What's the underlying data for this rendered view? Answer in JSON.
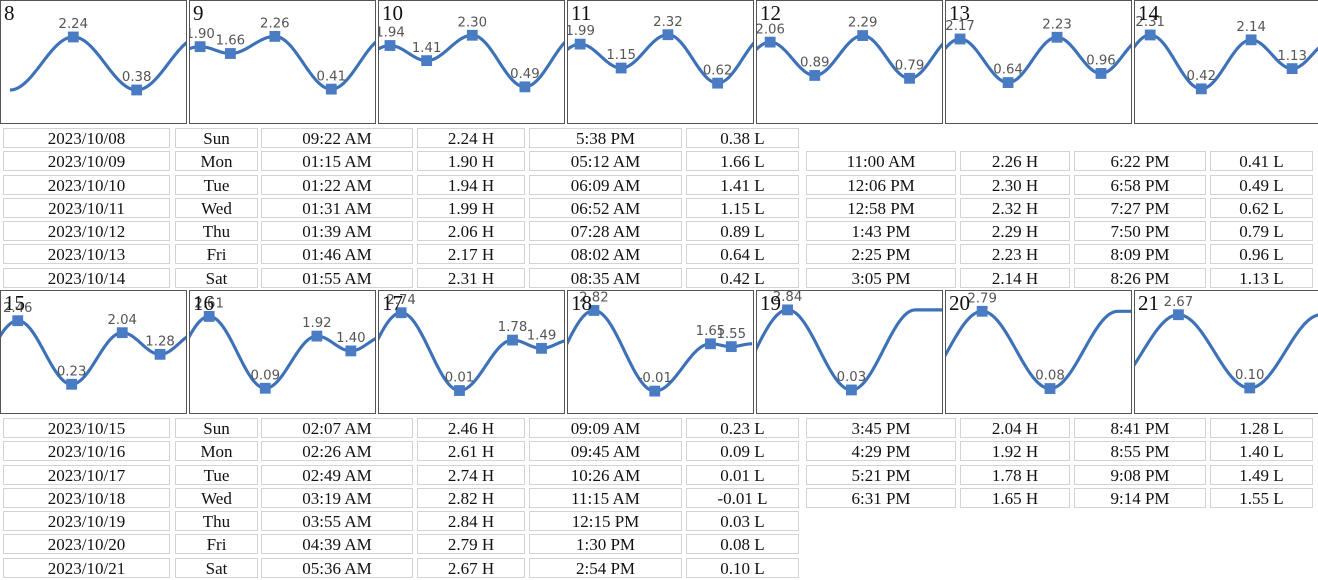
{
  "colors": {
    "curve": "#3d72b8",
    "marker": "#4a7cc4",
    "label": "#555555",
    "border": "#555555",
    "cell_border": "#d3d3d3"
  },
  "weeks": [
    {
      "days": [
        {
          "day": "8",
          "date": "2023/10/08",
          "weekday": "Sun",
          "tides": [
            {
              "time": "09:22 AM",
              "height": "2.24",
              "type": "H"
            },
            {
              "time": "5:38 PM",
              "height": "0.38",
              "type": "L"
            }
          ]
        },
        {
          "day": "9",
          "date": "2023/10/09",
          "weekday": "Mon",
          "tides": [
            {
              "time": "01:15 AM",
              "height": "1.90",
              "type": "H"
            },
            {
              "time": "05:12 AM",
              "height": "1.66",
              "type": "L"
            },
            {
              "time": "11:00 AM",
              "height": "2.26",
              "type": "H"
            },
            {
              "time": "6:22 PM",
              "height": "0.41",
              "type": "L"
            }
          ]
        },
        {
          "day": "10",
          "date": "2023/10/10",
          "weekday": "Tue",
          "tides": [
            {
              "time": "01:22 AM",
              "height": "1.94",
              "type": "H"
            },
            {
              "time": "06:09 AM",
              "height": "1.41",
              "type": "L"
            },
            {
              "time": "12:06 PM",
              "height": "2.30",
              "type": "H"
            },
            {
              "time": "6:58 PM",
              "height": "0.49",
              "type": "L"
            }
          ]
        },
        {
          "day": "11",
          "date": "2023/10/11",
          "weekday": "Wed",
          "tides": [
            {
              "time": "01:31 AM",
              "height": "1.99",
              "type": "H"
            },
            {
              "time": "06:52 AM",
              "height": "1.15",
              "type": "L"
            },
            {
              "time": "12:58 PM",
              "height": "2.32",
              "type": "H"
            },
            {
              "time": "7:27 PM",
              "height": "0.62",
              "type": "L"
            }
          ]
        },
        {
          "day": "12",
          "date": "2023/10/12",
          "weekday": "Thu",
          "tides": [
            {
              "time": "01:39 AM",
              "height": "2.06",
              "type": "H"
            },
            {
              "time": "07:28 AM",
              "height": "0.89",
              "type": "L"
            },
            {
              "time": "1:43 PM",
              "height": "2.29",
              "type": "H"
            },
            {
              "time": "7:50 PM",
              "height": "0.79",
              "type": "L"
            }
          ]
        },
        {
          "day": "13",
          "date": "2023/10/13",
          "weekday": "Fri",
          "tides": [
            {
              "time": "01:46 AM",
              "height": "2.17",
              "type": "H"
            },
            {
              "time": "08:02 AM",
              "height": "0.64",
              "type": "L"
            },
            {
              "time": "2:25 PM",
              "height": "2.23",
              "type": "H"
            },
            {
              "time": "8:09 PM",
              "height": "0.96",
              "type": "L"
            }
          ]
        },
        {
          "day": "14",
          "date": "2023/10/14",
          "weekday": "Sat",
          "tides": [
            {
              "time": "01:55 AM",
              "height": "2.31",
              "type": "H"
            },
            {
              "time": "08:35 AM",
              "height": "0.42",
              "type": "L"
            },
            {
              "time": "3:05 PM",
              "height": "2.14",
              "type": "H"
            },
            {
              "time": "8:26 PM",
              "height": "1.13",
              "type": "L"
            }
          ]
        }
      ]
    },
    {
      "days": [
        {
          "day": "15",
          "date": "2023/10/15",
          "weekday": "Sun",
          "tides": [
            {
              "time": "02:07 AM",
              "height": "2.46",
              "type": "H"
            },
            {
              "time": "09:09 AM",
              "height": "0.23",
              "type": "L"
            },
            {
              "time": "3:45 PM",
              "height": "2.04",
              "type": "H"
            },
            {
              "time": "8:41 PM",
              "height": "1.28",
              "type": "L"
            }
          ]
        },
        {
          "day": "16",
          "date": "2023/10/16",
          "weekday": "Mon",
          "tides": [
            {
              "time": "02:26 AM",
              "height": "2.61",
              "type": "H"
            },
            {
              "time": "09:45 AM",
              "height": "0.09",
              "type": "L"
            },
            {
              "time": "4:29 PM",
              "height": "1.92",
              "type": "H"
            },
            {
              "time": "8:55 PM",
              "height": "1.40",
              "type": "L"
            }
          ]
        },
        {
          "day": "17",
          "date": "2023/10/17",
          "weekday": "Tue",
          "tides": [
            {
              "time": "02:49 AM",
              "height": "2.74",
              "type": "H"
            },
            {
              "time": "10:26 AM",
              "height": "0.01",
              "type": "L"
            },
            {
              "time": "5:21 PM",
              "height": "1.78",
              "type": "H"
            },
            {
              "time": "9:08 PM",
              "height": "1.49",
              "type": "L"
            }
          ]
        },
        {
          "day": "18",
          "date": "2023/10/18",
          "weekday": "Wed",
          "tides": [
            {
              "time": "03:19 AM",
              "height": "2.82",
              "type": "H"
            },
            {
              "time": "11:15 AM",
              "height": "-0.01",
              "type": "L"
            },
            {
              "time": "6:31 PM",
              "height": "1.65",
              "type": "H"
            },
            {
              "time": "9:14 PM",
              "height": "1.55",
              "type": "L"
            }
          ]
        },
        {
          "day": "19",
          "date": "2023/10/19",
          "weekday": "Thu",
          "tides": [
            {
              "time": "03:55 AM",
              "height": "2.84",
              "type": "H"
            },
            {
              "time": "12:15 PM",
              "height": "0.03",
              "type": "L"
            }
          ]
        },
        {
          "day": "20",
          "date": "2023/10/20",
          "weekday": "Fri",
          "tides": [
            {
              "time": "04:39 AM",
              "height": "2.79",
              "type": "H"
            },
            {
              "time": "1:30 PM",
              "height": "0.08",
              "type": "L"
            }
          ]
        },
        {
          "day": "21",
          "date": "2023/10/21",
          "weekday": "Sat",
          "tides": [
            {
              "time": "05:36 AM",
              "height": "2.67",
              "type": "H"
            },
            {
              "time": "2:54 PM",
              "height": "0.10",
              "type": "L"
            }
          ]
        }
      ]
    }
  ],
  "chart_data": [
    {
      "type": "line",
      "title": "8",
      "x": [
        "09:22",
        "17:38"
      ],
      "y": [
        2.24,
        0.38
      ]
    },
    {
      "type": "line",
      "title": "9",
      "x": [
        "01:15",
        "05:12",
        "11:00",
        "18:22"
      ],
      "y": [
        1.9,
        1.66,
        2.26,
        0.41
      ]
    },
    {
      "type": "line",
      "title": "10",
      "x": [
        "01:22",
        "06:09",
        "12:06",
        "18:58"
      ],
      "y": [
        1.94,
        1.41,
        2.3,
        0.49
      ]
    },
    {
      "type": "line",
      "title": "11",
      "x": [
        "01:31",
        "06:52",
        "12:58",
        "19:27"
      ],
      "y": [
        1.99,
        1.15,
        2.32,
        0.62
      ]
    },
    {
      "type": "line",
      "title": "12",
      "x": [
        "01:39",
        "07:28",
        "13:43",
        "19:50"
      ],
      "y": [
        2.06,
        0.89,
        2.29,
        0.79
      ]
    },
    {
      "type": "line",
      "title": "13",
      "x": [
        "01:46",
        "08:02",
        "14:25",
        "20:09"
      ],
      "y": [
        2.17,
        0.64,
        2.23,
        0.96
      ]
    },
    {
      "type": "line",
      "title": "14",
      "x": [
        "01:55",
        "08:35",
        "15:05",
        "20:26"
      ],
      "y": [
        2.31,
        0.42,
        2.14,
        1.13
      ]
    },
    {
      "type": "line",
      "title": "15",
      "x": [
        "02:07",
        "09:09",
        "15:45",
        "20:41"
      ],
      "y": [
        2.46,
        0.23,
        2.04,
        1.28
      ]
    },
    {
      "type": "line",
      "title": "16",
      "x": [
        "02:26",
        "09:45",
        "16:29",
        "20:55"
      ],
      "y": [
        2.61,
        0.09,
        1.92,
        1.4
      ]
    },
    {
      "type": "line",
      "title": "17",
      "x": [
        "02:49",
        "10:26",
        "17:21",
        "21:08"
      ],
      "y": [
        2.74,
        0.01,
        1.78,
        1.49
      ]
    },
    {
      "type": "line",
      "title": "18",
      "x": [
        "03:19",
        "11:15",
        "18:31",
        "21:14"
      ],
      "y": [
        2.82,
        -0.01,
        1.65,
        1.55
      ]
    },
    {
      "type": "line",
      "title": "19",
      "x": [
        "03:55",
        "12:15"
      ],
      "y": [
        2.84,
        0.03
      ]
    },
    {
      "type": "line",
      "title": "20",
      "x": [
        "04:39",
        "13:30"
      ],
      "y": [
        2.79,
        0.08
      ]
    },
    {
      "type": "line",
      "title": "21",
      "x": [
        "05:36",
        "14:54"
      ],
      "y": [
        2.67,
        0.1
      ]
    }
  ]
}
